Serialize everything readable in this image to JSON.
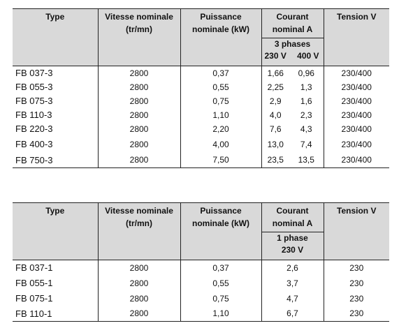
{
  "headers": {
    "type": "Type",
    "vitesse_l1": "Vitesse nominale",
    "vitesse_l2": "(tr/mn)",
    "puissance_l1": "Puissance",
    "puissance_l2": "nominale (kW)",
    "courant_l1": "Courant",
    "courant_l2": "nominal A",
    "tension": "Tension V"
  },
  "table1": {
    "phase_label": "3 phases",
    "volt_a": "230 V",
    "volt_b": "400 V",
    "rows": [
      {
        "type": "FB 037-3",
        "vitesse": "2800",
        "puissance": "0,37",
        "i230": "1,66",
        "i400": "0,96",
        "tension": "230/400"
      },
      {
        "type": "FB 055-3",
        "vitesse": "2800",
        "puissance": "0,55",
        "i230": "2,25",
        "i400": "1,3",
        "tension": "230/400"
      },
      {
        "type": "FB 075-3",
        "vitesse": "2800",
        "puissance": "0,75",
        "i230": "2,9",
        "i400": "1,6",
        "tension": "230/400"
      },
      {
        "type": "FB 110-3",
        "vitesse": "2800",
        "puissance": "1,10",
        "i230": "4,0",
        "i400": "2,3",
        "tension": "230/400"
      },
      {
        "type": "FB 220-3",
        "vitesse": "2800",
        "puissance": "2,20",
        "i230": "7,6",
        "i400": "4,3",
        "tension": "230/400"
      },
      {
        "type": "FB 400-3",
        "vitesse": "2800",
        "puissance": "4,00",
        "i230": "13,0",
        "i400": "7,4",
        "tension": "230/400"
      },
      {
        "type": "FB 750-3",
        "vitesse": "2800",
        "puissance": "7,50",
        "i230": "23,5",
        "i400": "13,5",
        "tension": "230/400"
      }
    ]
  },
  "table2": {
    "phase_label": "1 phase",
    "volt": "230 V",
    "rows": [
      {
        "type": "FB 037-1",
        "vitesse": "2800",
        "puissance": "0,37",
        "courant": "2,6",
        "tension": "230"
      },
      {
        "type": "FB 055-1",
        "vitesse": "2800",
        "puissance": "0,55",
        "courant": "3,7",
        "tension": "230"
      },
      {
        "type": "FB 075-1",
        "vitesse": "2800",
        "puissance": "0,75",
        "courant": "4,7",
        "tension": "230"
      },
      {
        "type": "FB 110-1",
        "vitesse": "2800",
        "puissance": "1,10",
        "courant": "6,7",
        "tension": "230"
      }
    ]
  }
}
